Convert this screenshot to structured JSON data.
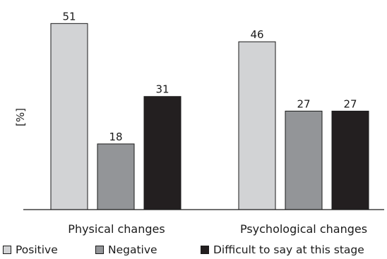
{
  "chart_data": {
    "type": "bar",
    "ylabel": "[%]",
    "ylim": [
      0,
      55
    ],
    "categories": [
      "Physical changes",
      "Psychological changes"
    ],
    "series": [
      {
        "name": "Positive",
        "values": [
          51,
          46
        ],
        "color": "#d2d3d5"
      },
      {
        "name": "Negative",
        "values": [
          18,
          27
        ],
        "color": "#939598"
      },
      {
        "name": "Difficult to say at this stage",
        "values": [
          31,
          27
        ],
        "color": "#231f20"
      }
    ],
    "legend_position": "bottom",
    "grid": false
  }
}
